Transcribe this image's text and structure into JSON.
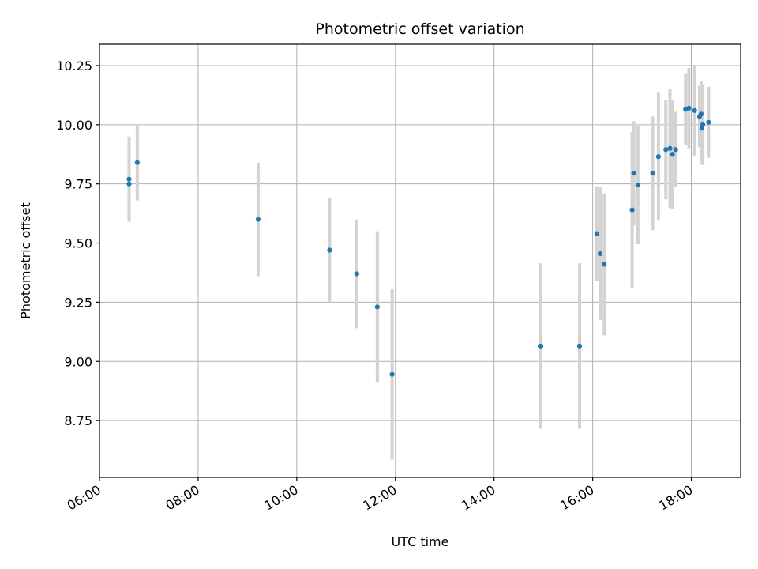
{
  "chart_data": {
    "type": "scatter",
    "title": "Photometric offset variation",
    "xlabel": "UTC time",
    "ylabel": "Photometric offset",
    "x_ticks": [
      "06:00",
      "08:00",
      "10:00",
      "12:00",
      "14:00",
      "16:00",
      "18:00"
    ],
    "y_ticks": [
      "8.75",
      "9.00",
      "9.25",
      "9.50",
      "9.75",
      "10.00",
      "10.25"
    ],
    "xlim": [
      "06:00",
      "19:00"
    ],
    "ylim": [
      8.51,
      10.34
    ],
    "grid": true,
    "colors": {
      "point": "#1f77b4",
      "errorbar": "#d3d3d3",
      "grid": "#b0b0b0"
    },
    "points": [
      {
        "x": "06:36",
        "y": 9.77,
        "yerr": 0.18
      },
      {
        "x": "06:36",
        "y": 9.75,
        "yerr": 0.16
      },
      {
        "x": "06:46",
        "y": 9.84,
        "yerr": 0.16
      },
      {
        "x": "09:13",
        "y": 9.6,
        "yerr": 0.24
      },
      {
        "x": "10:40",
        "y": 9.47,
        "yerr": 0.22
      },
      {
        "x": "11:13",
        "y": 9.37,
        "yerr": 0.23
      },
      {
        "x": "11:38",
        "y": 9.23,
        "yerr": 0.32
      },
      {
        "x": "11:56",
        "y": 8.945,
        "yerr": 0.36
      },
      {
        "x": "14:57",
        "y": 9.065,
        "yerr": 0.35
      },
      {
        "x": "15:44",
        "y": 9.065,
        "yerr": 0.35
      },
      {
        "x": "16:05",
        "y": 9.54,
        "yerr": 0.2
      },
      {
        "x": "16:09",
        "y": 9.455,
        "yerr": 0.28
      },
      {
        "x": "16:14",
        "y": 9.41,
        "yerr": 0.3
      },
      {
        "x": "16:48",
        "y": 9.64,
        "yerr": 0.33
      },
      {
        "x": "16:50",
        "y": 9.795,
        "yerr": 0.22
      },
      {
        "x": "16:55",
        "y": 9.745,
        "yerr": 0.25
      },
      {
        "x": "17:13",
        "y": 9.795,
        "yerr": 0.24
      },
      {
        "x": "17:20",
        "y": 9.865,
        "yerr": 0.27
      },
      {
        "x": "17:29",
        "y": 9.895,
        "yerr": 0.21
      },
      {
        "x": "17:34",
        "y": 9.9,
        "yerr": 0.25
      },
      {
        "x": "17:37",
        "y": 9.875,
        "yerr": 0.23
      },
      {
        "x": "17:41",
        "y": 9.895,
        "yerr": 0.16
      },
      {
        "x": "17:53",
        "y": 10.065,
        "yerr": 0.15
      },
      {
        "x": "17:57",
        "y": 10.07,
        "yerr": 0.17
      },
      {
        "x": "18:04",
        "y": 10.06,
        "yerr": 0.19
      },
      {
        "x": "18:10",
        "y": 10.035,
        "yerr": 0.13
      },
      {
        "x": "18:12",
        "y": 10.045,
        "yerr": 0.14
      },
      {
        "x": "18:13",
        "y": 9.985,
        "yerr": 0.15
      },
      {
        "x": "18:14",
        "y": 10.0,
        "yerr": 0.17
      },
      {
        "x": "18:21",
        "y": 10.01,
        "yerr": 0.15
      }
    ]
  }
}
